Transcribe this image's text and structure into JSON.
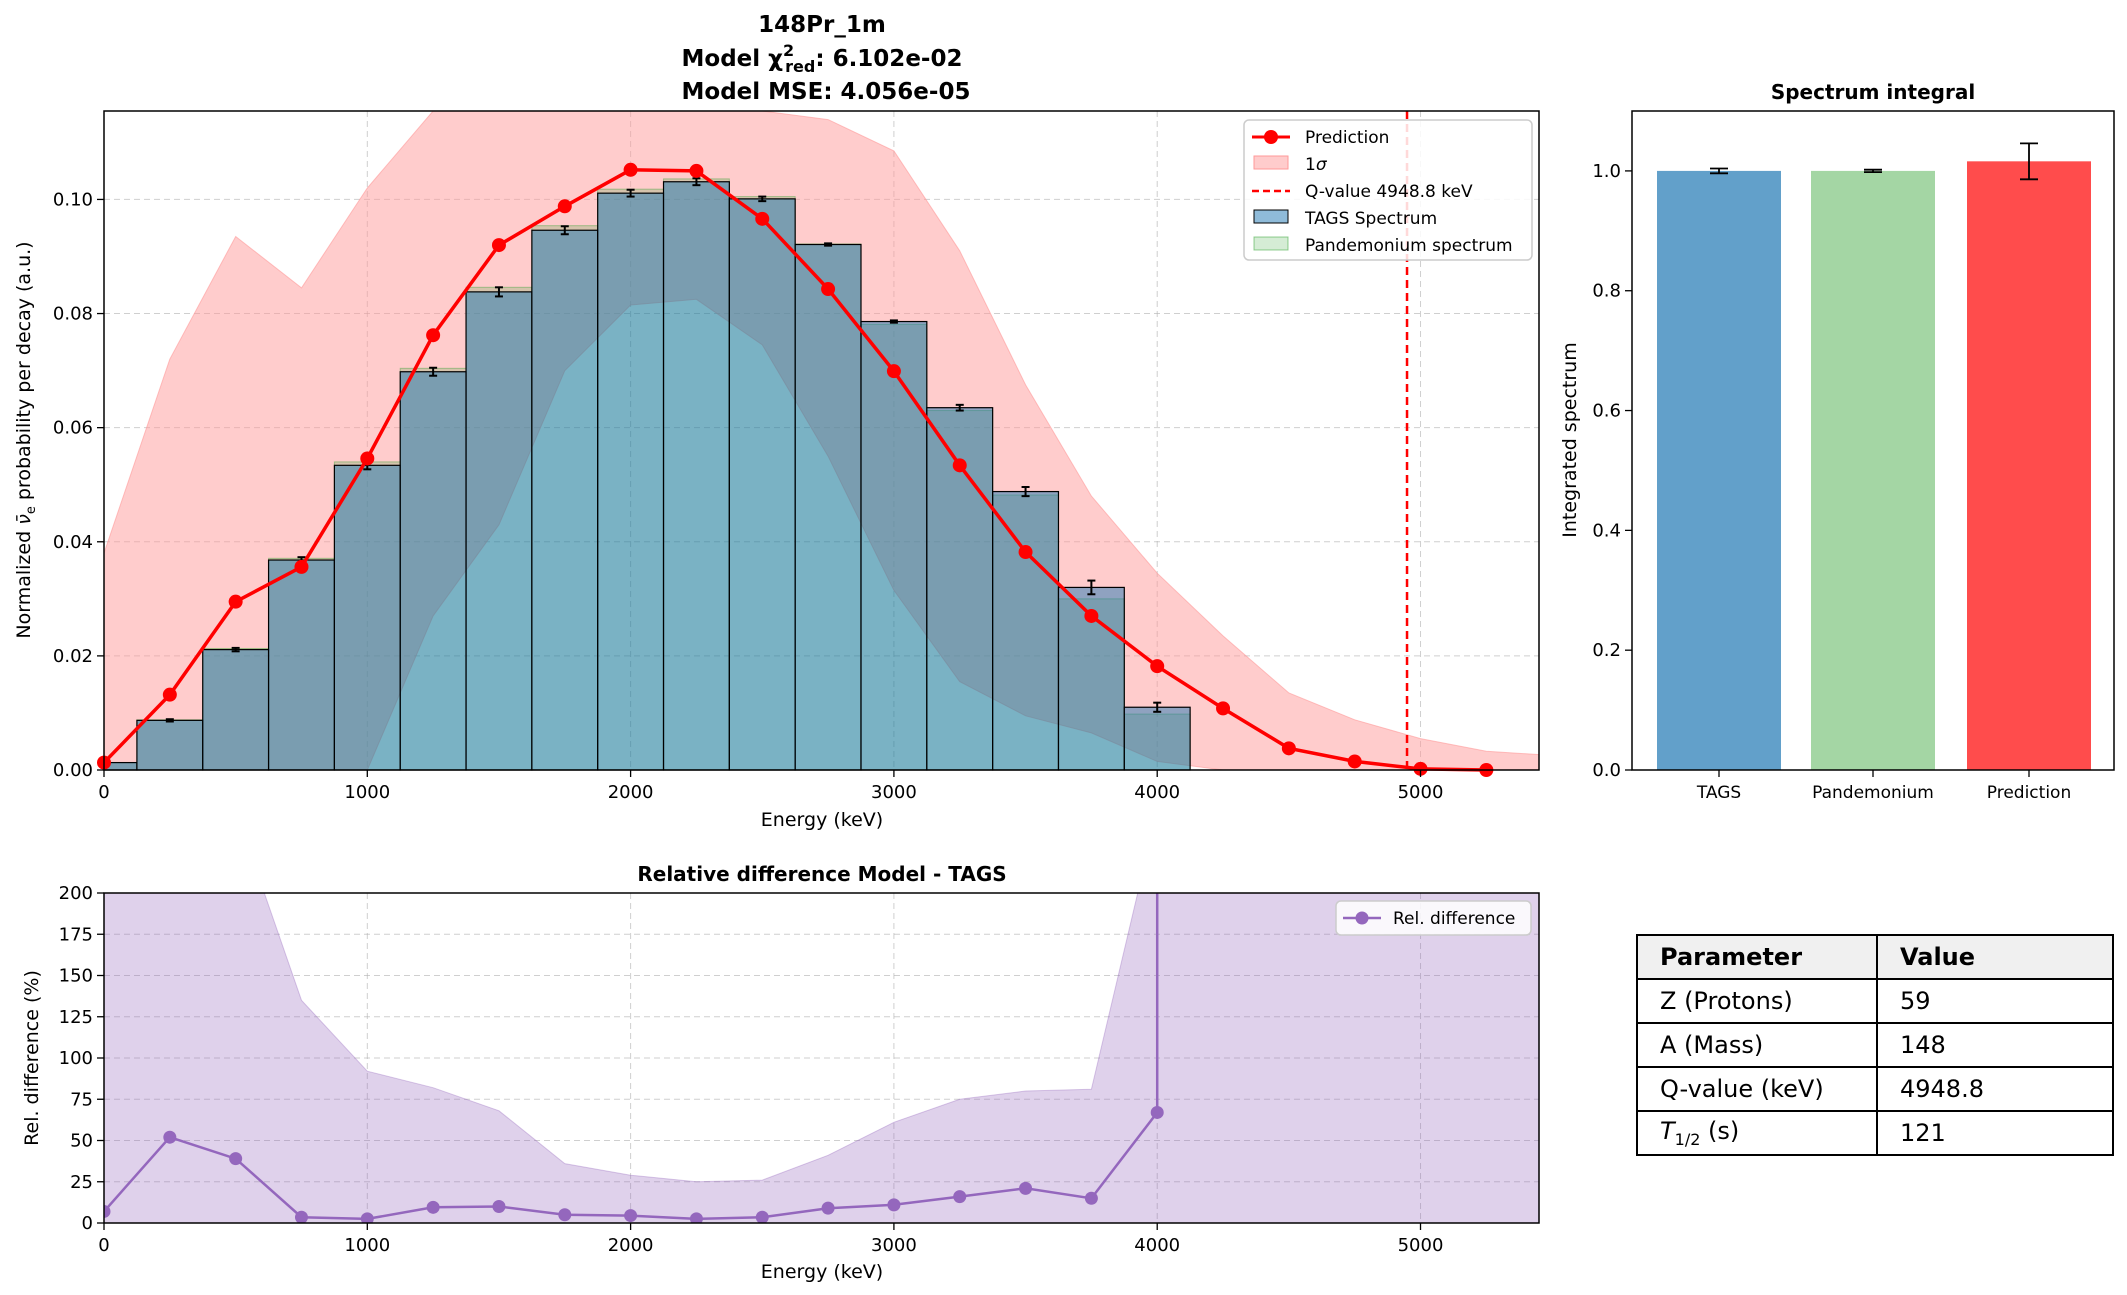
{
  "title_lines": [
    "148Pr_1m",
    "Model χ²_red: 6.102e-02",
    "Model MSE: 4.056e-05"
  ],
  "chart_data": [
    {
      "type": "bar",
      "title": "",
      "xlabel": "Energy (keV)",
      "ylabel": "Normalized ν̄e probability per decay (a.u.)",
      "xlim": [
        0,
        5450
      ],
      "ylim": [
        0,
        0.1155
      ],
      "xticks": [
        0,
        1000,
        2000,
        3000,
        4000,
        5000
      ],
      "yticks": [
        "0.00",
        "0.02",
        "0.04",
        "0.06",
        "0.08",
        "0.10"
      ],
      "grid": true,
      "legend_position": "top-right",
      "bin_centers": [
        0,
        250,
        500,
        750,
        1000,
        1250,
        1500,
        1750,
        2000,
        2250,
        2500,
        2750,
        3000,
        3250,
        3500,
        3750,
        4000
      ],
      "series": [
        {
          "name": "TAGS Spectrum",
          "kind": "bar",
          "color": "#1f77b4",
          "values": [
            0.0013,
            0.0087,
            0.0211,
            0.0368,
            0.0534,
            0.0698,
            0.0838,
            0.0946,
            0.1011,
            0.1031,
            0.1001,
            0.0921,
            0.0786,
            0.0635,
            0.0488,
            0.032,
            0.011
          ],
          "errors": [
            0.0001,
            0.0002,
            0.0003,
            0.0005,
            0.0007,
            0.0007,
            0.0008,
            0.0007,
            0.0006,
            0.0006,
            0.0004,
            0.0002,
            0.0002,
            0.0005,
            0.0008,
            0.0012,
            0.0008
          ]
        },
        {
          "name": "Pandemonium spectrum",
          "kind": "bar",
          "color": "#2ca02c",
          "values": [
            0.0013,
            0.0088,
            0.0213,
            0.0371,
            0.054,
            0.0704,
            0.0846,
            0.0954,
            0.1018,
            0.1036,
            0.1005,
            0.0922,
            0.0781,
            0.063,
            0.0482,
            0.03,
            0.0098
          ]
        },
        {
          "name": "Prediction",
          "kind": "line",
          "color": "#ff0000",
          "x": [
            0,
            250,
            500,
            750,
            1000,
            1250,
            1500,
            1750,
            2000,
            2250,
            2500,
            2750,
            3000,
            3250,
            3500,
            3750,
            4000,
            4250,
            4500,
            4750,
            5000,
            5250
          ],
          "values": [
            0.0013,
            0.0132,
            0.0295,
            0.0356,
            0.0546,
            0.0762,
            0.092,
            0.0988,
            0.1052,
            0.105,
            0.0966,
            0.0843,
            0.0699,
            0.0534,
            0.0382,
            0.027,
            0.0182,
            0.0108,
            0.0038,
            0.0015,
            0.0002,
            0.0
          ]
        },
        {
          "name": "1σ",
          "kind": "band",
          "color": "#ff9999",
          "x": [
            0,
            250,
            500,
            750,
            1000,
            1250,
            1500,
            1750,
            2000,
            2250,
            2500,
            2750,
            3000,
            3250,
            3500,
            3750,
            4000,
            4250,
            4500,
            4750,
            5000,
            5250,
            5450
          ],
          "lower": [
            0,
            0,
            0,
            0,
            0,
            0.027,
            0.043,
            0.07,
            0.0815,
            0.0825,
            0.0745,
            0.055,
            0.0315,
            0.0155,
            0.0095,
            0.0065,
            0.0015,
            0,
            0,
            0,
            0,
            0,
            0
          ],
          "upper": [
            0.038,
            0.072,
            0.0935,
            0.0845,
            0.102,
            0.125,
            0.145,
            0.17,
            0.135,
            0.13,
            0.12,
            0.114,
            0.1085,
            0.091,
            0.0675,
            0.048,
            0.0345,
            0.0235,
            0.0135,
            0.0088,
            0.0055,
            0.0033,
            0.0027
          ]
        }
      ],
      "annotations": [
        {
          "kind": "vline",
          "x": 4948.8,
          "label": "Q-value 4948.8 keV",
          "color": "#ff0000"
        }
      ],
      "legend_labels": [
        "Prediction",
        "1σ",
        "Q-value 4948.8 keV",
        "TAGS Spectrum",
        "Pandemonium spectrum"
      ]
    },
    {
      "type": "bar",
      "title": "Spectrum integral",
      "xlabel": "",
      "ylabel": "Integrated spectrum",
      "ylim": [
        0,
        1.1
      ],
      "yticks": [
        "0.0",
        "0.2",
        "0.4",
        "0.6",
        "0.8",
        "1.0"
      ],
      "grid": false,
      "categories": [
        "TAGS",
        "Pandemonium",
        "Prediction"
      ],
      "values": [
        1.0,
        1.0,
        1.016
      ],
      "errors": [
        0.004,
        0.002,
        0.03
      ],
      "colors": [
        "#1f77b4",
        "#2ca02c",
        "#ff0000"
      ]
    },
    {
      "type": "line",
      "title": "Relative difference Model - TAGS",
      "xlabel": "Energy (keV)",
      "ylabel": "Rel. difference (%)",
      "xlim": [
        0,
        5450
      ],
      "ylim": [
        0,
        200
      ],
      "xticks": [
        0,
        1000,
        2000,
        3000,
        4000,
        5000
      ],
      "yticks": [
        0,
        25,
        50,
        75,
        100,
        125,
        150,
        175,
        200
      ],
      "grid": true,
      "legend_position": "top-right",
      "series": [
        {
          "name": "Rel. difference",
          "color": "#9467bd",
          "x": [
            0,
            250,
            500,
            750,
            1000,
            1250,
            1500,
            1750,
            2000,
            2250,
            2500,
            2750,
            3000,
            3250,
            3500,
            3750,
            4000
          ],
          "values": [
            7,
            52,
            39,
            3.5,
            2.5,
            9.5,
            10,
            5,
            4.5,
            2.5,
            3.5,
            9,
            11,
            16,
            21,
            15,
            67
          ],
          "band_upper": [
            250,
            250,
            250,
            135,
            92,
            82,
            68,
            36,
            29,
            25,
            26,
            41,
            61,
            75,
            80,
            81,
            250,
            250,
            250,
            250,
            250,
            250,
            250
          ],
          "band_x": [
            0,
            250,
            500,
            750,
            1000,
            1250,
            1500,
            1750,
            2000,
            2250,
            2500,
            2750,
            3000,
            3250,
            3500,
            3750,
            4000,
            4250,
            4500,
            4750,
            5000,
            5250,
            5450
          ],
          "spike_at": 4000
        }
      ]
    }
  ],
  "table": {
    "header": [
      "Parameter",
      "Value"
    ],
    "rows": [
      {
        "param": "Z (Protons)",
        "value": "59"
      },
      {
        "param": "A (Mass)",
        "value": "148"
      },
      {
        "param": "Q-value (keV)",
        "value": "4948.8"
      },
      {
        "param": "T1/2 (s)",
        "value": "121"
      }
    ]
  }
}
